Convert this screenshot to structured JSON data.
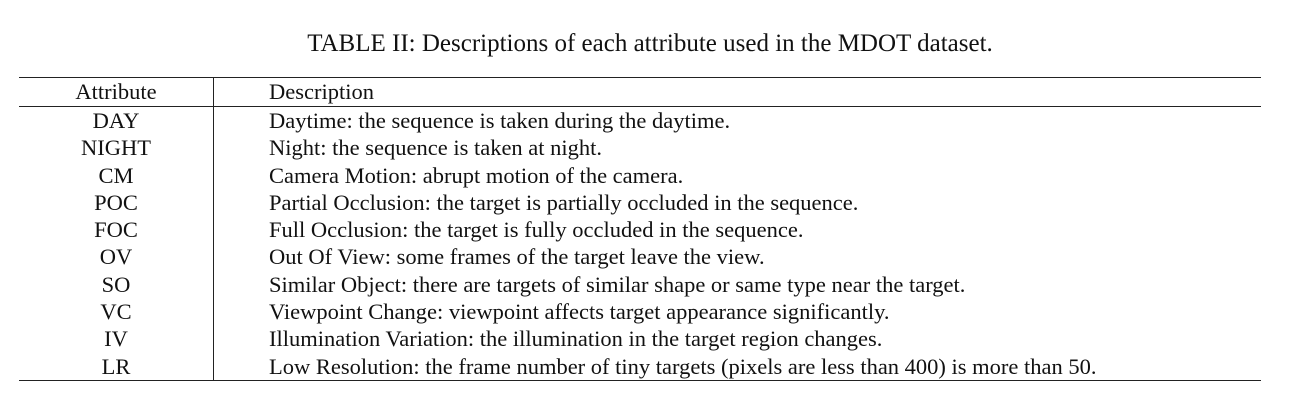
{
  "caption": "TABLE II: Descriptions of each attribute used in the MDOT dataset.",
  "table": {
    "headers": [
      "Attribute",
      "Description"
    ],
    "rows": [
      {
        "attribute": "DAY",
        "description": "Daytime: the sequence is taken during the daytime."
      },
      {
        "attribute": "NIGHT",
        "description": "Night: the sequence is taken at night."
      },
      {
        "attribute": "CM",
        "description": "Camera Motion: abrupt motion of the camera."
      },
      {
        "attribute": "POC",
        "description": "Partial Occlusion: the target is partially occluded in the sequence."
      },
      {
        "attribute": "FOC",
        "description": "Full Occlusion: the target is fully occluded in the sequence."
      },
      {
        "attribute": "OV",
        "description": "Out Of View: some frames of the target leave the view."
      },
      {
        "attribute": "SO",
        "description": "Similar Object: there are targets of similar shape or same type near the target."
      },
      {
        "attribute": "VC",
        "description": "Viewpoint Change: viewpoint affects target appearance significantly."
      },
      {
        "attribute": "IV",
        "description": "Illumination Variation: the illumination in the target region changes."
      },
      {
        "attribute": "LR",
        "description": "Low Resolution: the frame number of tiny targets (pixels are less than 400) is more than 50."
      }
    ]
  }
}
